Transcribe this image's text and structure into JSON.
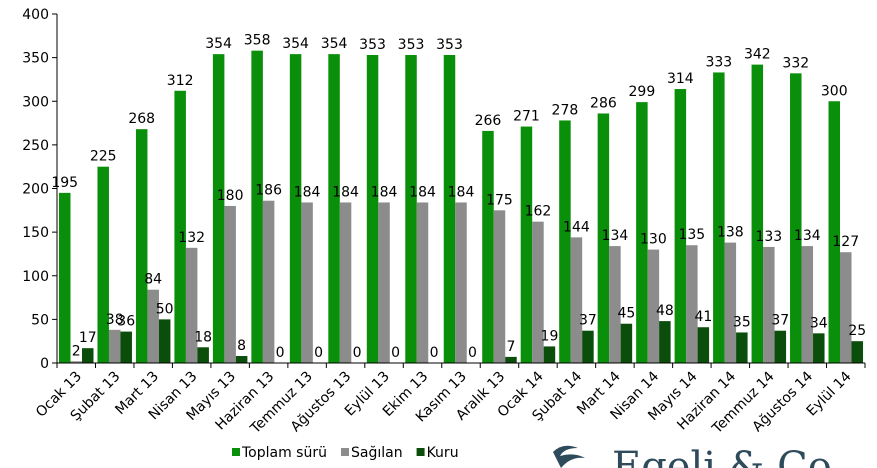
{
  "chart_data": {
    "type": "bar",
    "categories": [
      "Ocak 13",
      "Şubat 13",
      "Mart 13",
      "Nisan 13",
      "Mayıs 13",
      "Haziran 13",
      "Temmuz 13",
      "Ağustos 13",
      "Eylül 13",
      "Ekim 13",
      "Kasım 13",
      "Aralık 13",
      "Ocak 14",
      "Şubat 14",
      "Mart 14",
      "Nisan 14",
      "Mayıs 14",
      "Haziran 14",
      "Temmuz 14",
      "Ağustos 14",
      "Eylül 14"
    ],
    "series": [
      {
        "name": "Toplam sürü",
        "color": "#0a8f0a",
        "values": [
          195,
          225,
          268,
          312,
          354,
          358,
          354,
          354,
          353,
          353,
          353,
          266,
          271,
          278,
          286,
          299,
          314,
          333,
          342,
          332,
          300
        ]
      },
      {
        "name": "Sağılan",
        "color": "#8c8c8c",
        "values": [
          2,
          38,
          84,
          132,
          180,
          186,
          184,
          184,
          184,
          184,
          184,
          175,
          162,
          144,
          134,
          130,
          135,
          138,
          133,
          134,
          127
        ]
      },
      {
        "name": "Kuru",
        "color": "#0b4d0b",
        "values": [
          17,
          36,
          50,
          18,
          8,
          0,
          0,
          0,
          0,
          0,
          0,
          7,
          19,
          37,
          45,
          48,
          41,
          35,
          37,
          34,
          25
        ]
      }
    ],
    "ylim": [
      0,
      400
    ],
    "yticks": [
      0,
      50,
      100,
      150,
      200,
      250,
      300,
      350,
      400
    ],
    "grid": false,
    "legend": "bottom"
  },
  "logo": "Egeli & Co"
}
